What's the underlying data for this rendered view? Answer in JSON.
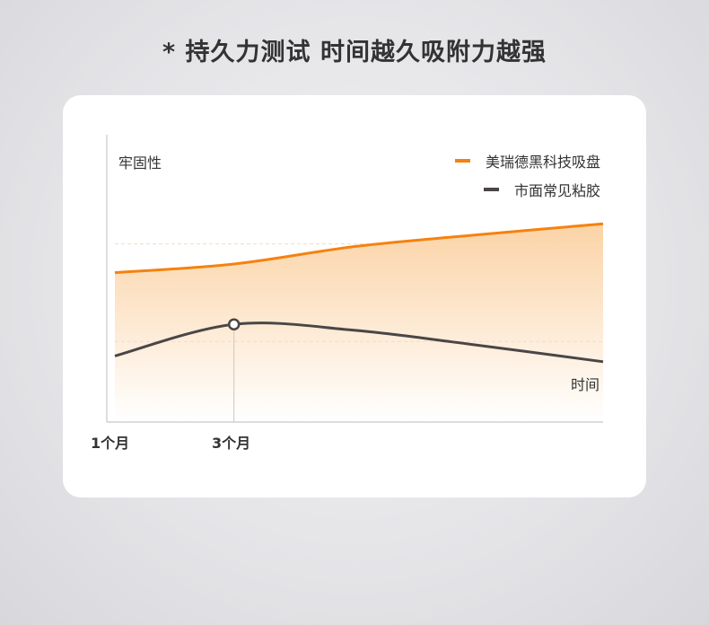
{
  "title": "* 持久力测试 时间越久吸附力越强",
  "chart_data": {
    "type": "area",
    "ylabel": "牢固性",
    "xlabel": "时间",
    "x_tick_labels": [
      "1个月",
      "3个月"
    ],
    "x_tick_values": [
      1,
      3
    ],
    "xlim": [
      1,
      9.2
    ],
    "ylim": [
      0,
      100
    ],
    "grid": "horizontal dashed",
    "legend_position": "top-right",
    "highlight_x": 3,
    "x": [
      1,
      3,
      5,
      7,
      9.2
    ],
    "series": [
      {
        "name": "美瑞德黑科技吸盘",
        "color": "#f5820f",
        "fill": true,
        "values": [
          52,
          55,
          61,
          65,
          69
        ]
      },
      {
        "name": "市面常见粘胶",
        "color": "#4a4646",
        "fill": false,
        "values": [
          23,
          34,
          32,
          27,
          21
        ]
      }
    ]
  }
}
